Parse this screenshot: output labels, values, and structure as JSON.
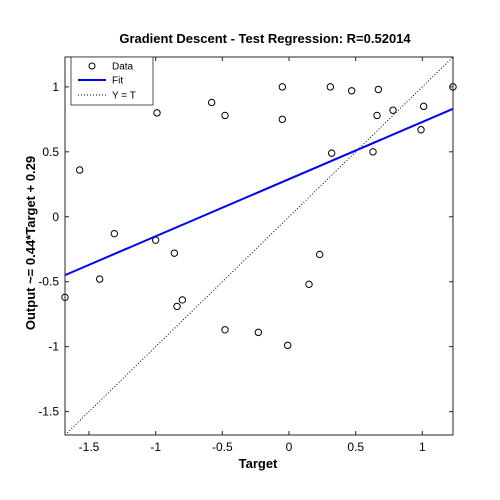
{
  "chart_data": {
    "type": "scatter",
    "title": "Gradient Descent - Test Regression: R=0.52014",
    "xlabel": "Target",
    "ylabel": "Output ~= 0.44*Target + 0.29",
    "xlim": [
      -1.68,
      1.23
    ],
    "ylim": [
      -1.68,
      1.23
    ],
    "x_ticks": [
      -1.5,
      -1,
      -0.5,
      0,
      0.5,
      1
    ],
    "x_tick_labels": [
      "-1.5",
      "-1",
      "-0.5",
      "0",
      "0.5",
      "1"
    ],
    "y_ticks": [
      -1.5,
      -1,
      -0.5,
      0,
      0.5,
      1
    ],
    "y_tick_labels": [
      "-1.5",
      "-1",
      "-0.5",
      "0",
      "0.5",
      "1"
    ],
    "grid": false,
    "legend": {
      "placement": "top-left",
      "entries": [
        "Data",
        "Fit",
        "Y = T"
      ]
    },
    "colors": {
      "data": "#000000",
      "fit": "#0000ff",
      "identity": "#000000"
    },
    "fit": {
      "slope": 0.44,
      "intercept": 0.29
    },
    "series": [
      {
        "name": "Data",
        "x": [
          -1.68,
          -1.57,
          -1.42,
          -1.31,
          -1.0,
          -0.99,
          -0.86,
          -0.84,
          -0.8,
          -0.58,
          -0.48,
          -0.48,
          -0.23,
          -0.05,
          -0.05,
          -0.01,
          0.15,
          0.23,
          0.31,
          0.32,
          0.47,
          0.63,
          0.66,
          0.67,
          0.78,
          0.99,
          1.01,
          1.23
        ],
        "y": [
          -0.62,
          0.36,
          -0.48,
          -0.13,
          -0.18,
          0.8,
          -0.28,
          -0.69,
          -0.64,
          0.88,
          0.78,
          -0.87,
          -0.89,
          1.0,
          0.75,
          -0.99,
          -0.52,
          -0.29,
          1.0,
          0.49,
          0.97,
          0.5,
          0.78,
          0.98,
          0.82,
          0.67,
          0.85,
          1.0
        ]
      }
    ]
  }
}
